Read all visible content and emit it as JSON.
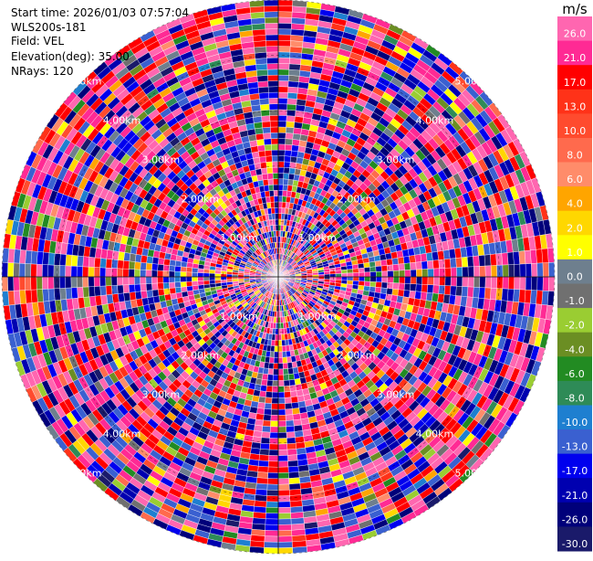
{
  "info": {
    "start_time": "Start time: 2026/01/03 07:57:04",
    "station": "WLS200s-181",
    "field": "Field: VEL",
    "elevation": "Elevation(deg): 35.00",
    "nrays": "NRays: 120"
  },
  "chart_data": {
    "type": "heatmap",
    "projection": "polar PPI",
    "field": "VEL",
    "n_rays": 120,
    "range_rings": [
      "1.00km",
      "2.00km",
      "3.00km",
      "4.00km",
      "5.00km"
    ],
    "colorbar": {
      "unit": "m/s",
      "levels": [
        "26.0",
        "21.0",
        "17.0",
        "13.0",
        "10.0",
        "8.0",
        "6.0",
        "4.0",
        "2.0",
        "1.0",
        "0.0",
        "-1.0",
        "-2.0",
        "-4.0",
        "-6.0",
        "-8.0",
        "-10.0",
        "-13.0",
        "-17.0",
        "-21.0",
        "-26.0",
        "-30.0"
      ],
      "colors": [
        "#ff66b0",
        "#ff2a94",
        "#ff0000",
        "#ff3218",
        "#ff4b2e",
        "#ff6a4d",
        "#ff8c6a",
        "#ffa500",
        "#ffd700",
        "#ffff00",
        "#6e7f8e",
        "#707070",
        "#9acd32",
        "#6b8e23",
        "#228b22",
        "#2e8b57",
        "#1e7fd0",
        "#3a60d0",
        "#0000ee",
        "#0000b0",
        "#00007a",
        "#1a1a6a"
      ]
    }
  }
}
